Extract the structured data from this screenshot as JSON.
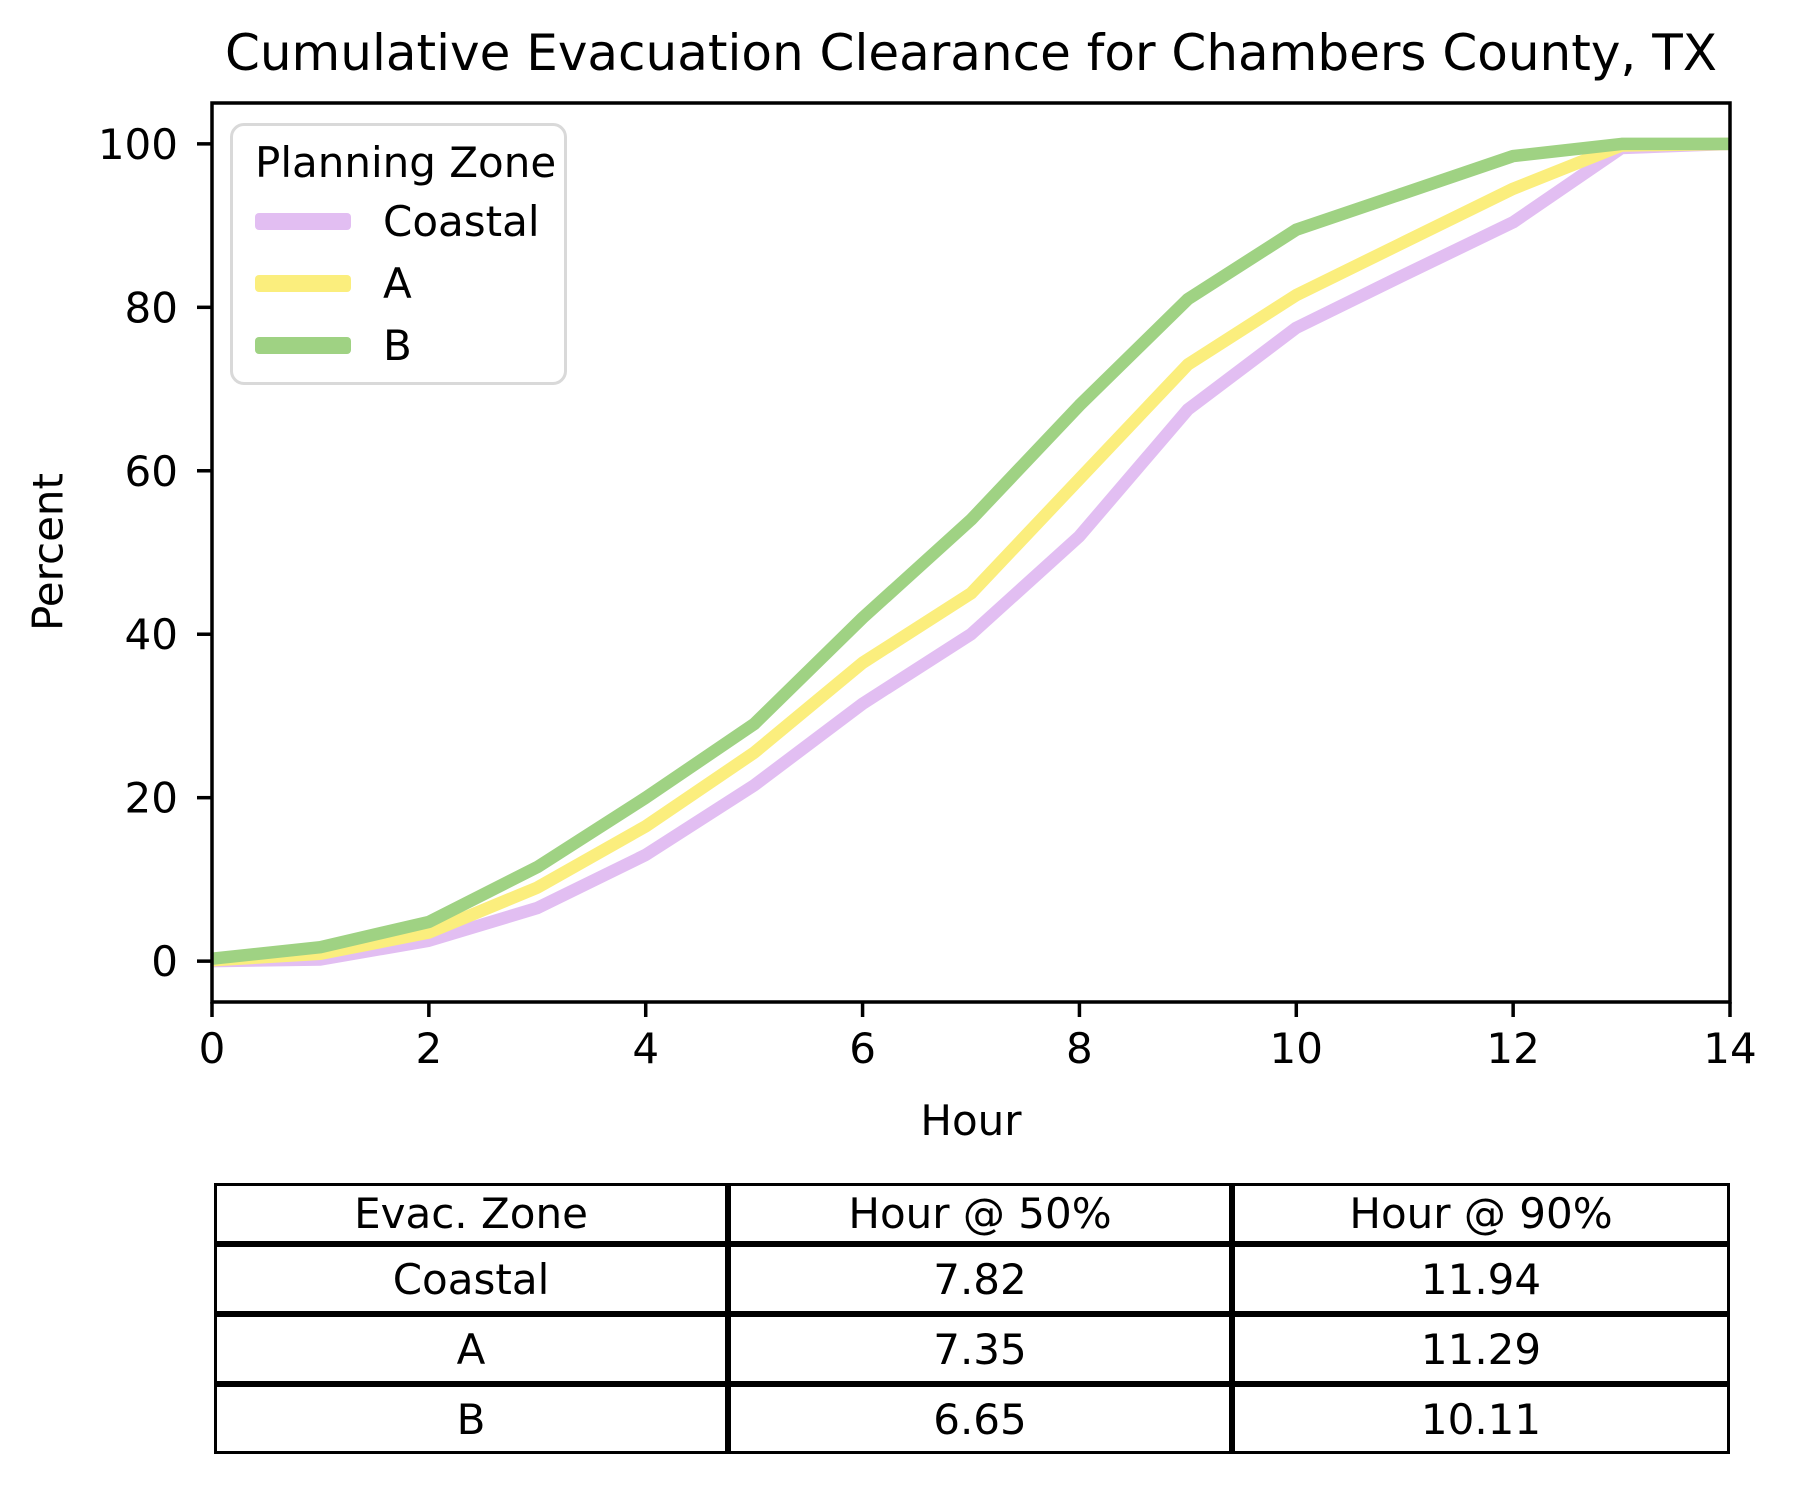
{
  "figure_title": "Cumulative Evacuation Clearance for Chambers County, TX",
  "chart_data": {
    "type": "line",
    "title": "Cumulative Evacuation Clearance for Chambers County, TX",
    "xlabel": "Hour",
    "ylabel": "Percent",
    "x": [
      0,
      1,
      2,
      3,
      4,
      5,
      6,
      7,
      8,
      9,
      10,
      11,
      12,
      13,
      14
    ],
    "series": [
      {
        "name": "Coastal",
        "color": "#e2bef2",
        "values": [
          0,
          0.2,
          2.5,
          6.5,
          13,
          21.5,
          31.5,
          40,
          52,
          67.5,
          77.5,
          84,
          90.4,
          99.5,
          100
        ]
      },
      {
        "name": "A",
        "color": "#fbee7d",
        "values": [
          0.1,
          0.9,
          3.5,
          9,
          16.5,
          25.5,
          36.5,
          45,
          59,
          73,
          81.5,
          88,
          94.5,
          99.8,
          100
        ]
      },
      {
        "name": "B",
        "color": "#9fd283",
        "values": [
          0.3,
          1.7,
          4.8,
          11.5,
          20,
          29,
          42,
          54,
          68,
          81,
          89.5,
          94,
          98.5,
          100,
          100
        ]
      }
    ],
    "xticks": [
      0,
      2,
      4,
      6,
      8,
      10,
      12,
      14
    ],
    "yticks": [
      0,
      20,
      40,
      60,
      80,
      100
    ],
    "xlim": [
      0,
      14
    ],
    "ylim": [
      -5,
      105
    ],
    "grid": false,
    "legend_title": "Planning Zone",
    "legend_position": "upper left"
  },
  "table": {
    "headers": [
      "Evac. Zone",
      "Hour @ 50%",
      "Hour @ 90%"
    ],
    "rows": [
      [
        "Coastal",
        "7.82",
        "11.94"
      ],
      [
        "A",
        "7.35",
        "11.29"
      ],
      [
        "B",
        "6.65",
        "10.11"
      ]
    ]
  }
}
